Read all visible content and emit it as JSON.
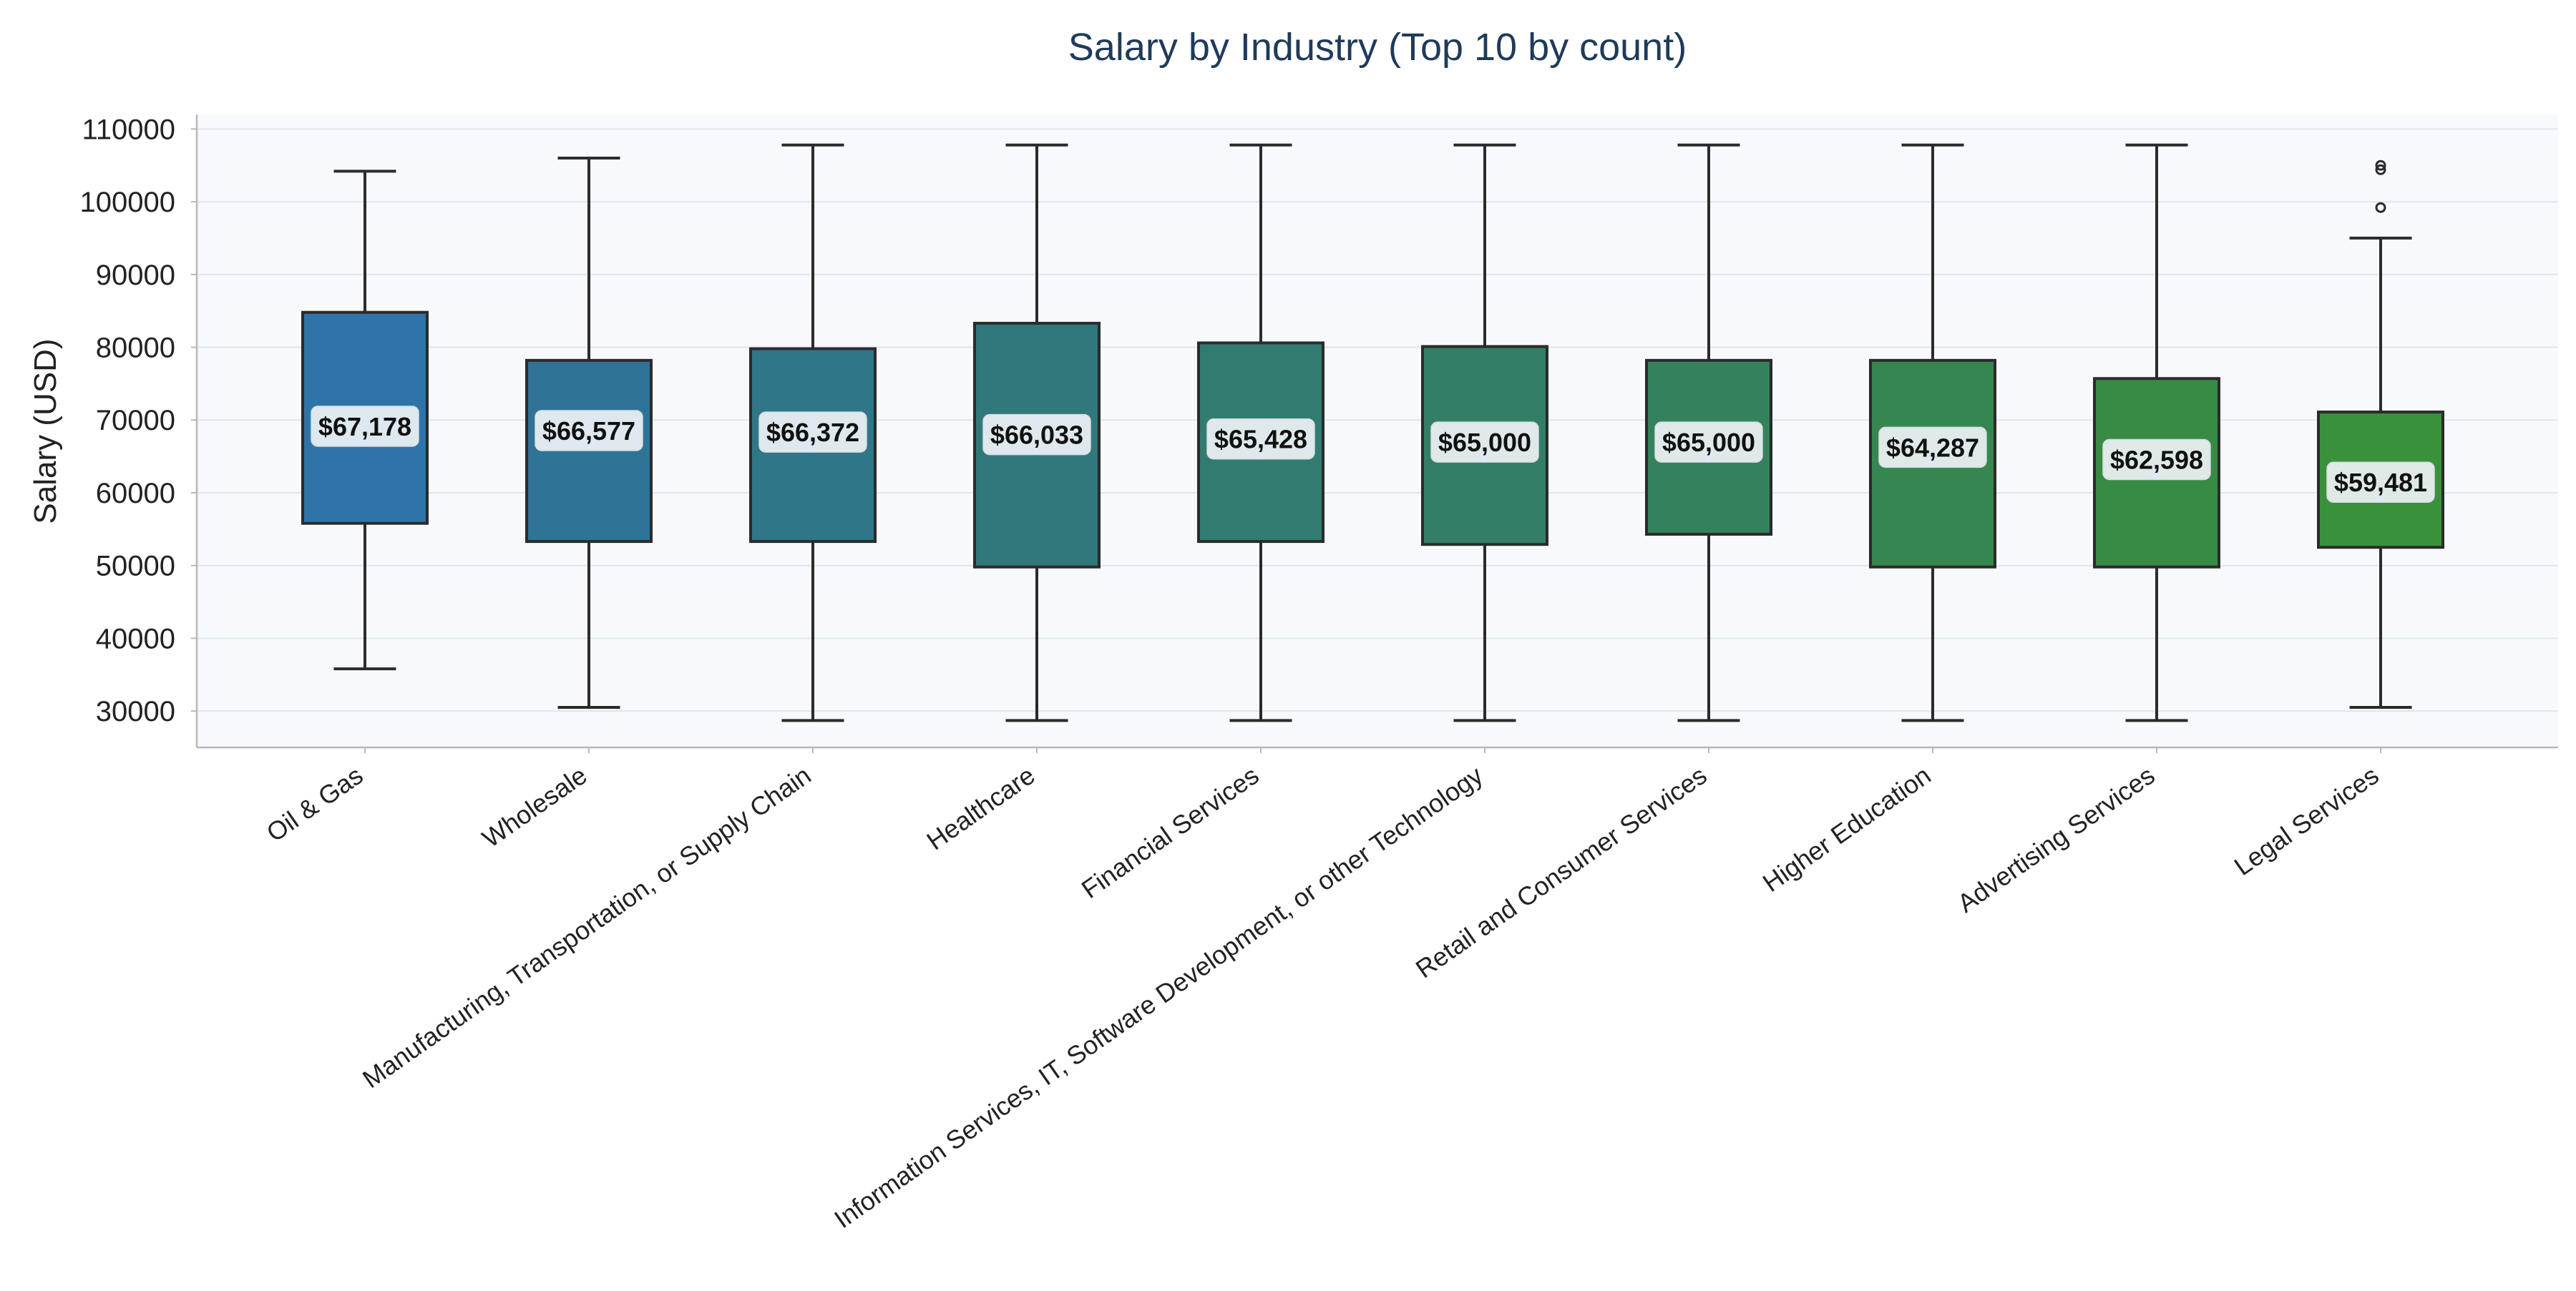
{
  "chart_data": {
    "type": "box",
    "title": "Salary by Industry (Top 10 by count)",
    "xlabel": "",
    "ylabel": "Salary (USD)",
    "ylim": [
      25000,
      112000
    ],
    "yticks": [
      30000,
      40000,
      50000,
      60000,
      70000,
      80000,
      90000,
      100000,
      110000
    ],
    "grid": "horizontal",
    "colors": {
      "title": "#1f3b5a",
      "plot_background": "#f7f9fc",
      "grid": "#dfe6ef",
      "axis": "#b8b8b8",
      "box_edge": "#2b2b2b",
      "label_box": "#eef2f5",
      "label_text": "#111111",
      "mean_marker": "#2e86de"
    },
    "categories": [
      "Oil & Gas",
      "Wholesale",
      "Manufacturing, Transportation, or Supply Chain",
      "Healthcare",
      "Financial Services",
      "Information Services, IT, Software Development, or other Technology",
      "Retail and Consumer Services",
      "Higher Education",
      "Advertising Services",
      "Legal Services"
    ],
    "boxes": [
      {
        "whisker_low": 35800,
        "q1": 55800,
        "q3": 84800,
        "whisker_high": 104200,
        "mean": 67178,
        "mean_label": "$67,178",
        "outliers": [],
        "color": "#2e74a8"
      },
      {
        "whisker_low": 30500,
        "q1": 53300,
        "q3": 78200,
        "whisker_high": 106000,
        "mean": 66577,
        "mean_label": "$66,577",
        "outliers": [],
        "color": "#2f7396"
      },
      {
        "whisker_low": 28700,
        "q1": 53300,
        "q3": 79800,
        "whisker_high": 107800,
        "mean": 66372,
        "mean_label": "$66,372",
        "outliers": [],
        "color": "#2f7689"
      },
      {
        "whisker_low": 28700,
        "q1": 49800,
        "q3": 83300,
        "whisker_high": 107800,
        "mean": 66033,
        "mean_label": "$66,033",
        "outliers": [],
        "color": "#31787b"
      },
      {
        "whisker_low": 28700,
        "q1": 53300,
        "q3": 80600,
        "whisker_high": 107800,
        "mean": 65428,
        "mean_label": "$65,428",
        "outliers": [],
        "color": "#327b70"
      },
      {
        "whisker_low": 28700,
        "q1": 52900,
        "q3": 80100,
        "whisker_high": 107800,
        "mean": 65000,
        "mean_label": "$65,000",
        "outliers": [],
        "color": "#337e66"
      },
      {
        "whisker_low": 28700,
        "q1": 54300,
        "q3": 78200,
        "whisker_high": 107800,
        "mean": 65000,
        "mean_label": "$65,000",
        "outliers": [],
        "color": "#34825c"
      },
      {
        "whisker_low": 28700,
        "q1": 49800,
        "q3": 78200,
        "whisker_high": 107800,
        "mean": 64287,
        "mean_label": "$64,287",
        "outliers": [],
        "color": "#368650"
      },
      {
        "whisker_low": 28700,
        "q1": 49800,
        "q3": 75700,
        "whisker_high": 107800,
        "mean": 62598,
        "mean_label": "$62,598",
        "outliers": [],
        "color": "#388b45"
      },
      {
        "whisker_low": 30500,
        "q1": 52500,
        "q3": 71100,
        "whisker_high": 95000,
        "mean": 59481,
        "mean_label": "$59,481",
        "outliers": [
          99200,
          104400,
          105000
        ],
        "color": "#3a913b"
      }
    ]
  }
}
